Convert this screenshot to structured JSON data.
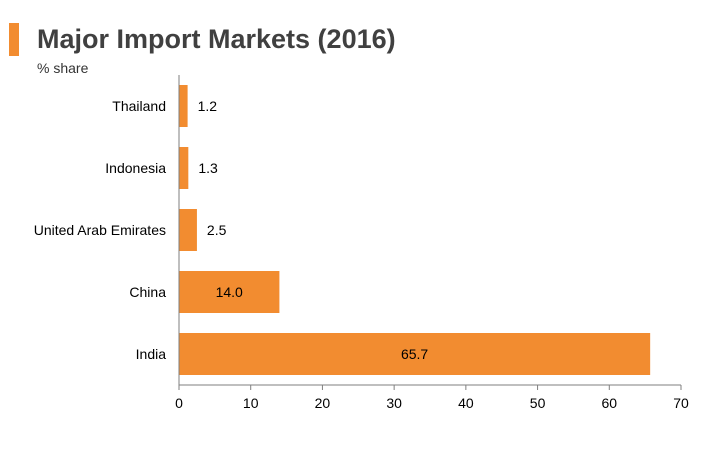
{
  "title": "Major Import Markets (2016)",
  "subtitle": "% share",
  "colors": {
    "accent": "#f28c30",
    "bar": "#f28c30",
    "axis": "#7f7f7f",
    "text": "#000000"
  },
  "chart_data": {
    "type": "bar",
    "orientation": "horizontal",
    "categories": [
      "Thailand",
      "Indonesia",
      "United Arab Emirates",
      "China",
      "India"
    ],
    "values": [
      1.2,
      1.3,
      2.5,
      14.0,
      65.7
    ],
    "value_labels": [
      "1.2",
      "1.3",
      "2.5",
      "14.0",
      "65.7"
    ],
    "title": "Major Import Markets (2016)",
    "subtitle": "% share",
    "xlim": [
      0,
      70
    ],
    "xticks": [
      0,
      10,
      20,
      30,
      40,
      50,
      60,
      70
    ],
    "grid": false,
    "legend": "none"
  }
}
